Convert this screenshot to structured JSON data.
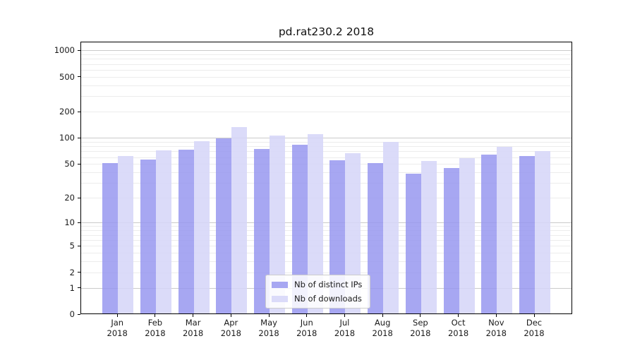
{
  "chart_data": {
    "type": "bar",
    "title": "pd.rat230.2 2018",
    "categories": [
      "Jan",
      "Feb",
      "Mar",
      "Apr",
      "May",
      "Jun",
      "Jul",
      "Aug",
      "Sep",
      "Oct",
      "Nov",
      "Dec"
    ],
    "category_year": "2018",
    "series": [
      {
        "name": "Nb of distinct IPs",
        "color": "#9696f0d6",
        "values": [
          50,
          55,
          72,
          97,
          74,
          82,
          54,
          50,
          38,
          44,
          63,
          61
        ]
      },
      {
        "name": "Nb of downloads",
        "color": "#d6d6f8dd",
        "values": [
          61,
          71,
          91,
          130,
          104,
          108,
          65,
          88,
          53,
          58,
          78,
          70
        ]
      }
    ],
    "yticks": [
      0,
      1,
      2,
      5,
      10,
      20,
      50,
      100,
      200,
      500,
      1000
    ],
    "yscale": "log10(value+1)",
    "ylim": [
      0,
      1258
    ],
    "grid": true,
    "legend_position": "lower center",
    "colors": {
      "bar_distinct_ips": "#a9a9f2",
      "bar_downloads": "#dcdcf8",
      "major_grid": "#cacaca",
      "minor_grid": "#ececec",
      "axis": "#000000",
      "text": "#1a1a1a",
      "background": "#ffffff"
    }
  }
}
